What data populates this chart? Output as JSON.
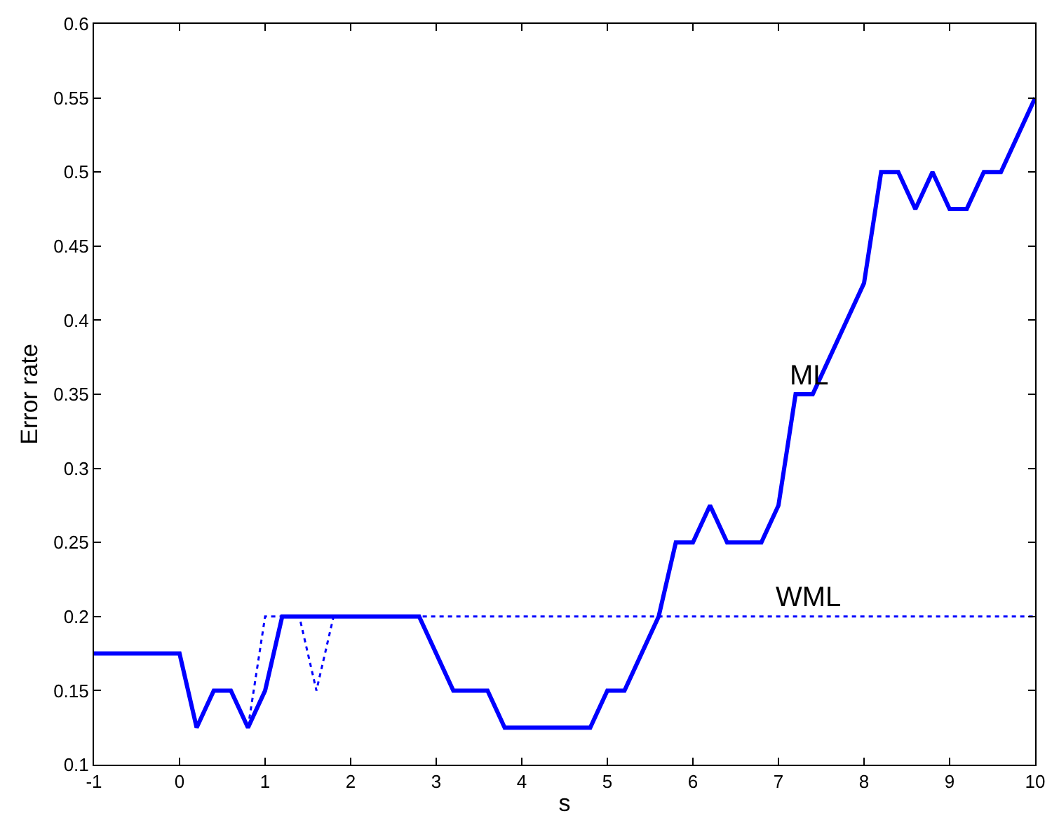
{
  "chart_data": {
    "type": "line",
    "xlabel": "s",
    "ylabel": "Error rate",
    "xlim": [
      -1,
      10
    ],
    "xticks": [
      -1,
      0,
      1,
      2,
      3,
      4,
      5,
      6,
      7,
      8,
      9,
      10
    ],
    "ylim": [
      0.1,
      0.6
    ],
    "yticks": [
      0.1,
      0.15,
      0.2,
      0.25,
      0.3,
      0.35,
      0.4,
      0.45,
      0.5,
      0.55,
      0.6
    ],
    "series": [
      {
        "name": "WML",
        "color": "#0000ff",
        "line_style": "dotted",
        "x": [
          -1,
          0,
          0.2,
          0.4,
          0.6,
          0.8,
          1.0,
          1.4,
          1.6,
          1.8,
          10
        ],
        "values": [
          0.175,
          0.175,
          0.125,
          0.15,
          0.15,
          0.125,
          0.2,
          0.2,
          0.15,
          0.2,
          0.2
        ]
      },
      {
        "name": "ML",
        "color": "#0000ff",
        "line_style": "solid",
        "x": [
          -1,
          0,
          0.2,
          0.4,
          0.6,
          0.8,
          1.0,
          1.2,
          2.8,
          3.2,
          3.6,
          3.8,
          4.8,
          5.0,
          5.2,
          5.6,
          5.8,
          6.0,
          6.2,
          6.4,
          6.8,
          7.0,
          7.2,
          7.4,
          8.0,
          8.2,
          8.4,
          8.6,
          8.8,
          9.0,
          9.2,
          9.4,
          9.6,
          10
        ],
        "values": [
          0.175,
          0.175,
          0.125,
          0.15,
          0.15,
          0.125,
          0.15,
          0.2,
          0.2,
          0.15,
          0.15,
          0.125,
          0.125,
          0.15,
          0.15,
          0.2,
          0.25,
          0.25,
          0.275,
          0.25,
          0.25,
          0.275,
          0.35,
          0.35,
          0.425,
          0.5,
          0.5,
          0.475,
          0.5,
          0.475,
          0.475,
          0.5,
          0.5,
          0.55
        ]
      }
    ]
  }
}
